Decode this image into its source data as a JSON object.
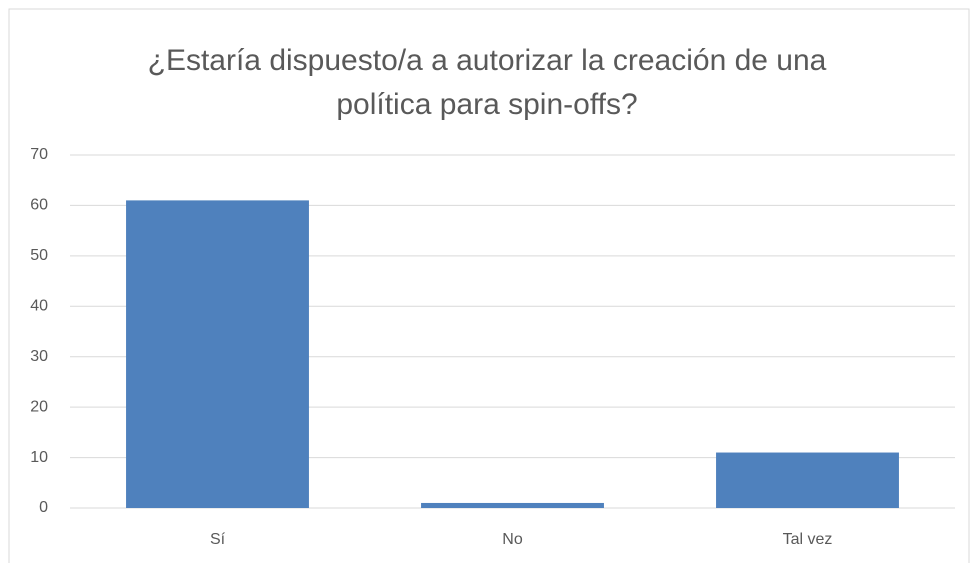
{
  "chart_data": {
    "type": "bar",
    "title": "¿Estaría dispuesto/a a autorizar la creación de una política para spin-offs?",
    "title_lines": [
      "¿Estaría dispuesto/a a autorizar la creación de una",
      "política para spin-offs?"
    ],
    "categories": [
      "Sí",
      "No",
      "Tal vez"
    ],
    "values": [
      61,
      1,
      11
    ],
    "color": "#4f81bd",
    "ylim": [
      0,
      70
    ],
    "yticks": [
      0,
      10,
      20,
      30,
      40,
      50,
      60,
      70
    ],
    "grid": true
  }
}
